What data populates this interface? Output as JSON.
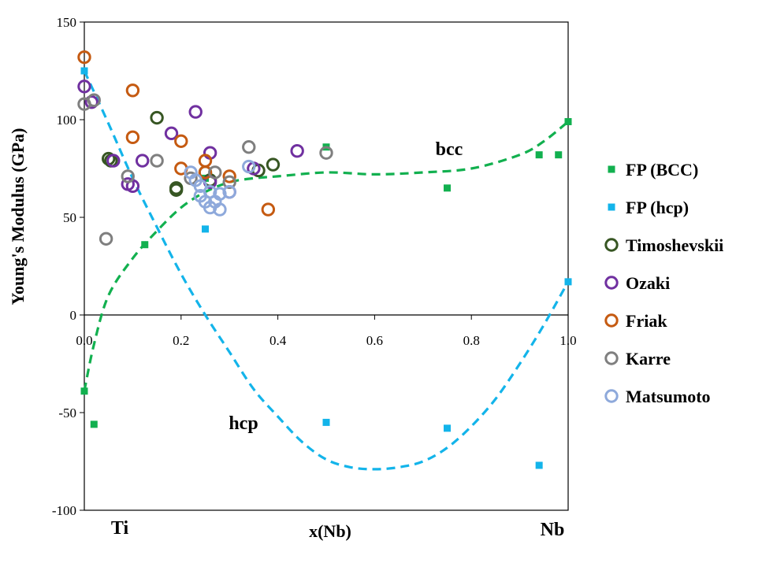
{
  "chart_data": {
    "type": "scatter",
    "title": "",
    "xlabel": "x(Nb)",
    "ylabel": "Young's Modulus (GPa)",
    "xlim": [
      0.0,
      1.0
    ],
    "ylim": [
      -100,
      150
    ],
    "xticks": [
      0.0,
      0.2,
      0.4,
      0.6,
      0.8,
      1.0
    ],
    "xtick_labels": [
      "0.0",
      "0.2",
      "0.4",
      "0.6",
      "0.8",
      "1.0"
    ],
    "yticks": [
      -100,
      -50,
      0,
      50,
      100,
      150
    ],
    "ytick_labels": [
      "-100",
      "-50",
      "0",
      "50",
      "100",
      "150"
    ],
    "grid": false,
    "legend_position": "right",
    "annotations": {
      "ti": "Ti",
      "nb": "Nb",
      "bcc": "bcc",
      "hcp": "hcp"
    },
    "series": [
      {
        "name": "FP (BCC)",
        "marker": "square",
        "color": "#12b04f",
        "points": [
          [
            0.0,
            -39
          ],
          [
            0.02,
            -56
          ],
          [
            0.125,
            36
          ],
          [
            0.25,
            70
          ],
          [
            0.5,
            86
          ],
          [
            0.75,
            65
          ],
          [
            0.94,
            82
          ],
          [
            0.98,
            82
          ],
          [
            1.0,
            99
          ]
        ]
      },
      {
        "name": "FP (hcp)",
        "marker": "square",
        "color": "#13b4ea",
        "points": [
          [
            0.0,
            125
          ],
          [
            0.25,
            44
          ],
          [
            0.5,
            -55
          ],
          [
            0.75,
            -58
          ],
          [
            0.94,
            -77
          ],
          [
            1.0,
            17
          ]
        ]
      },
      {
        "name": "Timoshevskii",
        "marker": "open-circle",
        "color": "#375623",
        "points": [
          [
            0.05,
            80
          ],
          [
            0.055,
            79
          ],
          [
            0.15,
            101
          ],
          [
            0.19,
            65
          ],
          [
            0.19,
            64
          ],
          [
            0.25,
            73
          ],
          [
            0.26,
            69
          ],
          [
            0.36,
            74
          ],
          [
            0.39,
            77
          ]
        ]
      },
      {
        "name": "Ozaki",
        "marker": "open-circle",
        "color": "#7030a0",
        "points": [
          [
            0.0,
            117
          ],
          [
            0.015,
            109
          ],
          [
            0.06,
            79
          ],
          [
            0.09,
            67
          ],
          [
            0.1,
            66
          ],
          [
            0.12,
            79
          ],
          [
            0.18,
            93
          ],
          [
            0.23,
            104
          ],
          [
            0.26,
            83
          ],
          [
            0.26,
            68
          ],
          [
            0.3,
            63
          ],
          [
            0.35,
            75
          ],
          [
            0.44,
            84
          ]
        ]
      },
      {
        "name": "Friak",
        "marker": "open-circle",
        "color": "#c55a11",
        "points": [
          [
            0.0,
            132
          ],
          [
            0.1,
            115
          ],
          [
            0.1,
            91
          ],
          [
            0.2,
            89
          ],
          [
            0.2,
            75
          ],
          [
            0.25,
            79
          ],
          [
            0.25,
            73
          ],
          [
            0.3,
            71
          ],
          [
            0.38,
            54
          ]
        ]
      },
      {
        "name": "Karre",
        "marker": "open-circle",
        "color": "#7f7f7f",
        "points": [
          [
            0.0,
            108
          ],
          [
            0.02,
            110
          ],
          [
            0.045,
            39
          ],
          [
            0.09,
            71
          ],
          [
            0.15,
            79
          ],
          [
            0.22,
            70
          ],
          [
            0.27,
            73
          ],
          [
            0.3,
            68
          ],
          [
            0.34,
            86
          ],
          [
            0.5,
            83
          ]
        ]
      },
      {
        "name": "Matsumoto",
        "marker": "open-circle",
        "color": "#8ea9db",
        "points": [
          [
            0.22,
            73
          ],
          [
            0.23,
            69
          ],
          [
            0.24,
            66
          ],
          [
            0.24,
            61
          ],
          [
            0.25,
            58
          ],
          [
            0.26,
            63
          ],
          [
            0.26,
            55
          ],
          [
            0.27,
            58
          ],
          [
            0.28,
            54
          ],
          [
            0.28,
            62
          ],
          [
            0.3,
            63
          ],
          [
            0.34,
            76
          ]
        ]
      }
    ],
    "fit_curves": [
      {
        "label": "bcc",
        "color": "#12b04f",
        "style": "dashed",
        "points": [
          [
            0.0,
            -39
          ],
          [
            0.02,
            -15
          ],
          [
            0.05,
            10
          ],
          [
            0.1,
            29
          ],
          [
            0.15,
            43
          ],
          [
            0.2,
            55
          ],
          [
            0.25,
            63
          ],
          [
            0.3,
            68
          ],
          [
            0.35,
            70
          ],
          [
            0.4,
            71
          ],
          [
            0.5,
            73
          ],
          [
            0.6,
            72
          ],
          [
            0.7,
            73
          ],
          [
            0.8,
            75
          ],
          [
            0.9,
            82
          ],
          [
            0.95,
            89
          ],
          [
            1.0,
            99
          ]
        ]
      },
      {
        "label": "hcp",
        "color": "#13b4ea",
        "style": "dashed",
        "points": [
          [
            0.0,
            125
          ],
          [
            0.05,
            98
          ],
          [
            0.1,
            70
          ],
          [
            0.15,
            45
          ],
          [
            0.2,
            21
          ],
          [
            0.25,
            0
          ],
          [
            0.3,
            -19
          ],
          [
            0.35,
            -38
          ],
          [
            0.4,
            -52
          ],
          [
            0.45,
            -65
          ],
          [
            0.5,
            -74
          ],
          [
            0.55,
            -78
          ],
          [
            0.6,
            -79
          ],
          [
            0.65,
            -78
          ],
          [
            0.7,
            -75
          ],
          [
            0.75,
            -68
          ],
          [
            0.8,
            -57
          ],
          [
            0.85,
            -43
          ],
          [
            0.9,
            -25
          ],
          [
            0.95,
            -5
          ],
          [
            1.0,
            17
          ]
        ]
      }
    ]
  }
}
